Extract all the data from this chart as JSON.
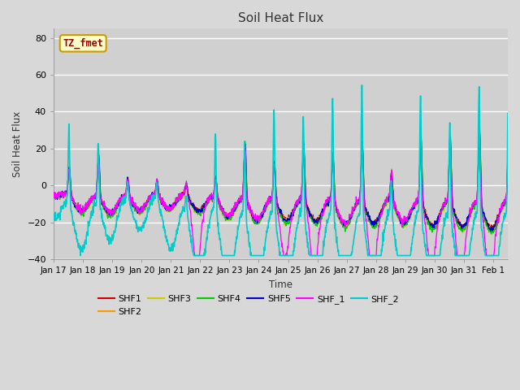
{
  "title": "Soil Heat Flux",
  "ylabel": "Soil Heat Flux",
  "xlabel": "Time",
  "ylim": [
    -40,
    85
  ],
  "yticks": [
    -40,
    -20,
    0,
    20,
    40,
    60,
    80
  ],
  "xtick_labels": [
    "Jan 17",
    "Jan 18",
    "Jan 19",
    "Jan 20",
    "Jan 21",
    "Jan 22",
    "Jan 23",
    "Jan 24",
    "Jan 25",
    "Jan 26",
    "Jan 27",
    "Jan 28",
    "Jan 29",
    "Jan 30",
    "Jan 31",
    "Feb 1"
  ],
  "series_colors": {
    "SHF1": "#cc0000",
    "SHF2": "#ff9900",
    "SHF3": "#cccc00",
    "SHF4": "#00cc00",
    "SHF5": "#0000cc",
    "SHF_1": "#ff00ff",
    "SHF_2": "#00cccc"
  },
  "annotation_text": "TZ_fmet",
  "annotation_color": "#990000",
  "annotation_bg": "#ffffcc",
  "annotation_edge": "#cc9900",
  "fig_bg": "#d8d8d8",
  "plot_bg": "#d0d0d0",
  "grid_color": "#c0c0c0",
  "linewidth": 0.9
}
